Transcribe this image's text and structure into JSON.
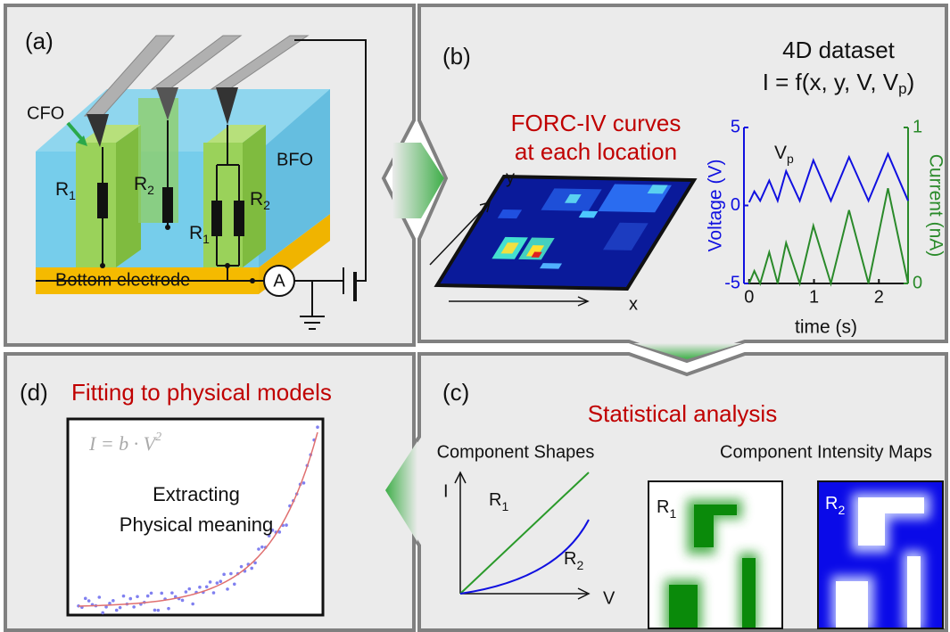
{
  "panel_a": {
    "label": "(a)",
    "cfo": "CFO",
    "bfo": "BFO",
    "resistors": [
      {
        "base": "R",
        "sub": "1"
      },
      {
        "base": "R",
        "sub": "2"
      },
      {
        "base": "R",
        "sub": "1"
      },
      {
        "base": "R",
        "sub": "2"
      }
    ],
    "electrode": "Bottom electrode",
    "ammeter": "A"
  },
  "panel_b": {
    "label": "(b)",
    "heading": [
      "FORC-IV curves",
      "at each location"
    ],
    "dataset": "4D dataset",
    "formula": {
      "text": "I = f(x, y, V, V",
      "sub": "p",
      "tail": ")"
    },
    "map_axes": {
      "x": "x",
      "y": "y"
    },
    "plot": {
      "type": "line",
      "xlabel": "time (s)",
      "ylabel": "Voltage (V)",
      "y2label": "Current (nA)",
      "xlim": [
        -0.08,
        2.45
      ],
      "xticks": [
        0,
        1,
        2
      ],
      "ylim": [
        -5,
        5
      ],
      "yticks": [
        -5,
        0,
        5
      ],
      "y2lim": [
        0,
        1
      ],
      "y2ticks": [
        0,
        1
      ],
      "series": [
        {
          "label": {
            "base": "V",
            "sub": "p"
          },
          "color": "#1010e0",
          "x": [
            0,
            0.08,
            0.17,
            0.31,
            0.44,
            0.57,
            0.78,
            0.99,
            1.26,
            1.54,
            1.84,
            2.14,
            2.45
          ],
          "values": [
            0.2,
            0.9,
            0.3,
            1.6,
            0.3,
            2.2,
            0.3,
            2.9,
            0.3,
            3.1,
            0.3,
            3.3,
            0.3
          ]
        },
        {
          "axis": "y2",
          "color": "#2a8a2a",
          "x": [
            0,
            0.08,
            0.17,
            0.31,
            0.44,
            0.57,
            0.78,
            0.99,
            1.26,
            1.54,
            1.84,
            2.14,
            2.45
          ],
          "values": [
            0,
            0.08,
            0,
            0.2,
            0,
            0.26,
            0,
            0.37,
            0,
            0.47,
            0,
            0.61,
            0
          ]
        }
      ]
    }
  },
  "panel_c": {
    "label": "(c)",
    "title": "Statistical analysis",
    "shapes_title": "Component Shapes",
    "maps_title": "Component Intensity Maps",
    "axis_i": "I",
    "axis_v": "V",
    "shape_labels": [
      {
        "base": "R",
        "sub": "1"
      },
      {
        "base": "R",
        "sub": "2"
      }
    ],
    "map_labels": [
      {
        "base": "R",
        "sub": "1"
      },
      {
        "base": "R",
        "sub": "2"
      }
    ]
  },
  "panel_d": {
    "label": "(d)",
    "title": "Fitting to physical models",
    "formula": {
      "text": "I = b · V",
      "sup": "2"
    },
    "caption": [
      "Extracting",
      "Physical meaning"
    ]
  }
}
